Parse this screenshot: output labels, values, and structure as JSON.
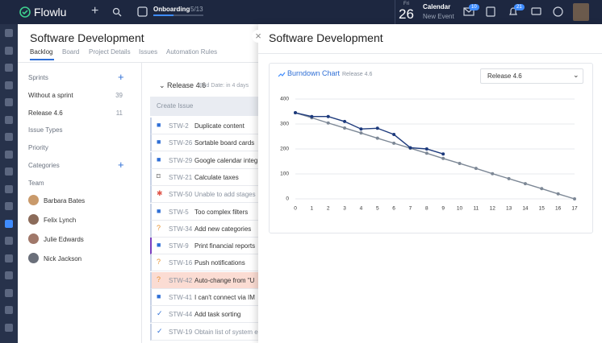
{
  "topbar": {
    "brand": "Flowlu",
    "onboarding": {
      "label": "Onboarding",
      "progress": "5/13"
    },
    "date": {
      "weekday": "Fri",
      "day": 26
    },
    "calendar": {
      "title": "Calendar",
      "subtitle": "New Event"
    },
    "badges": [
      10,
      21
    ]
  },
  "project": {
    "title": "Software Development",
    "tabs": [
      "Backlog",
      "Board",
      "Project Details",
      "Issues",
      "Automation Rules"
    ]
  },
  "filters": {
    "sprints": {
      "label": "Sprints",
      "items": [
        {
          "name": "Without a sprint",
          "count": 39
        },
        {
          "name": "Release 4.6",
          "count": 11
        }
      ]
    },
    "groups": [
      "Issue Types",
      "Priority",
      "Categories"
    ],
    "team": {
      "label": "Team",
      "members": [
        "Barbara Bates",
        "Felix Lynch",
        "Julie Edwards",
        "Nick Jackson"
      ]
    }
  },
  "backlog": {
    "sprint": "Release 4.6",
    "end_date": "End Date: in 4 days",
    "create": "Create Issue",
    "issues": [
      {
        "key": "STW-2",
        "title": "Duplicate content",
        "icon": "checkbox"
      },
      {
        "key": "STW-26",
        "title": "Sortable board cards",
        "icon": "checkbox"
      },
      {
        "key": "STW-29",
        "title": "Google calendar integ",
        "icon": "checkbox"
      },
      {
        "key": "STW-21",
        "title": "Calculate taxes",
        "icon": "bookmark"
      },
      {
        "key": "STW-50",
        "title": "Unable to add stages",
        "icon": "bug",
        "muted": true
      },
      {
        "key": "STW-5",
        "title": "Too complex filters",
        "icon": "checkbox"
      },
      {
        "key": "STW-34",
        "title": "Add new categories",
        "icon": "question"
      },
      {
        "key": "STW-9",
        "title": "Print financial reports",
        "icon": "checkbox",
        "accent": "#7b3fbf"
      },
      {
        "key": "STW-16",
        "title": "Push notifications",
        "icon": "question"
      },
      {
        "key": "STW-42",
        "title": "Auto-change from \"U",
        "icon": "question",
        "background": "#fbdcd3"
      },
      {
        "key": "STW-41",
        "title": "I can't connect via IM",
        "icon": "checkbox"
      },
      {
        "key": "STW-44",
        "title": "Add task sorting",
        "icon": "check"
      },
      {
        "key": "STW-19",
        "title": "Obtain list of system e",
        "icon": "check",
        "muted": true
      }
    ]
  },
  "panel": {
    "title": "Software Development",
    "select": "Release 4.6"
  },
  "chart_data": {
    "type": "line",
    "title": "Burndown Chart",
    "subtitle": "Release 4.6",
    "x": [
      0,
      1,
      2,
      3,
      4,
      5,
      6,
      7,
      8,
      9,
      10,
      11,
      12,
      13,
      14,
      15,
      16,
      17
    ],
    "xlim": [
      0,
      17
    ],
    "xticks": [
      0,
      1,
      2,
      3,
      4,
      5,
      6,
      7,
      8,
      9,
      10,
      11,
      12,
      13,
      14,
      15,
      16,
      17
    ],
    "ylim": [
      0,
      400
    ],
    "yticks": [
      0,
      100,
      200,
      300,
      400
    ],
    "grid": true,
    "series": [
      {
        "color": "#7d8896",
        "values": [
          345,
          325,
          304,
          284,
          264,
          243,
          223,
          203,
          183,
          162,
          142,
          122,
          101,
          81,
          61,
          41,
          20,
          0
        ]
      },
      {
        "color": "#1d3a7c",
        "values": [
          345,
          330,
          330,
          310,
          280,
          283,
          258,
          205,
          200,
          180,
          null,
          null,
          null,
          null,
          null,
          null,
          null,
          null
        ]
      }
    ]
  }
}
